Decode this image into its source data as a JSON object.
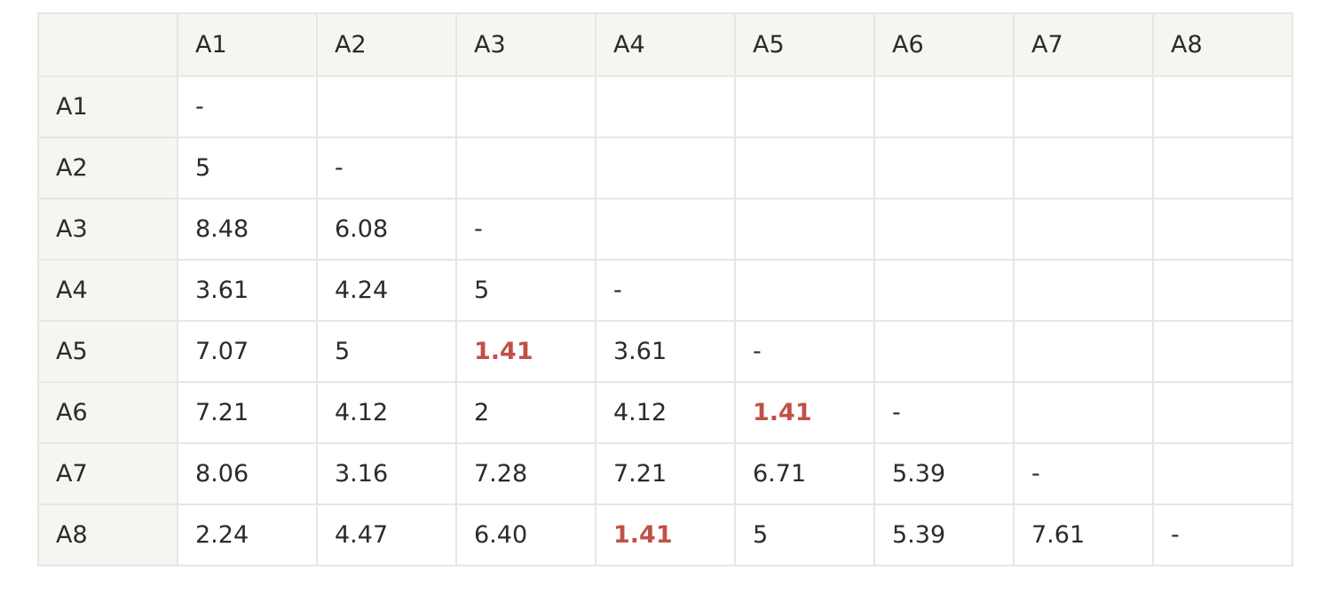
{
  "table": {
    "corner": "",
    "columns": [
      "A1",
      "A2",
      "A3",
      "A4",
      "A5",
      "A6",
      "A7",
      "A8"
    ],
    "highlight_color": "#bf5148",
    "header_background": "#f6f5f2",
    "border_color": "#e6e6e4",
    "rows": [
      {
        "label": "A1",
        "cells": [
          "-",
          "",
          "",
          "",
          "",
          "",
          "",
          ""
        ],
        "highlight": []
      },
      {
        "label": "A2",
        "cells": [
          "5",
          "-",
          "",
          "",
          "",
          "",
          "",
          ""
        ],
        "highlight": []
      },
      {
        "label": "A3",
        "cells": [
          "8.48",
          "6.08",
          "-",
          "",
          "",
          "",
          "",
          ""
        ],
        "highlight": []
      },
      {
        "label": "A4",
        "cells": [
          "3.61",
          "4.24",
          "5",
          "-",
          "",
          "",
          "",
          ""
        ],
        "highlight": []
      },
      {
        "label": "A5",
        "cells": [
          "7.07",
          "5",
          "1.41",
          "3.61",
          "-",
          "",
          "",
          ""
        ],
        "highlight": [
          2
        ]
      },
      {
        "label": "A6",
        "cells": [
          "7.21",
          "4.12",
          "2",
          "4.12",
          "1.41",
          "-",
          "",
          ""
        ],
        "highlight": [
          4
        ]
      },
      {
        "label": "A7",
        "cells": [
          "8.06",
          "3.16",
          "7.28",
          "7.21",
          "6.71",
          "5.39",
          "-",
          ""
        ],
        "highlight": []
      },
      {
        "label": "A8",
        "cells": [
          "2.24",
          "4.47",
          "6.40",
          "1.41",
          "5",
          "5.39",
          "7.61",
          "-"
        ],
        "highlight": [
          3
        ]
      }
    ]
  }
}
